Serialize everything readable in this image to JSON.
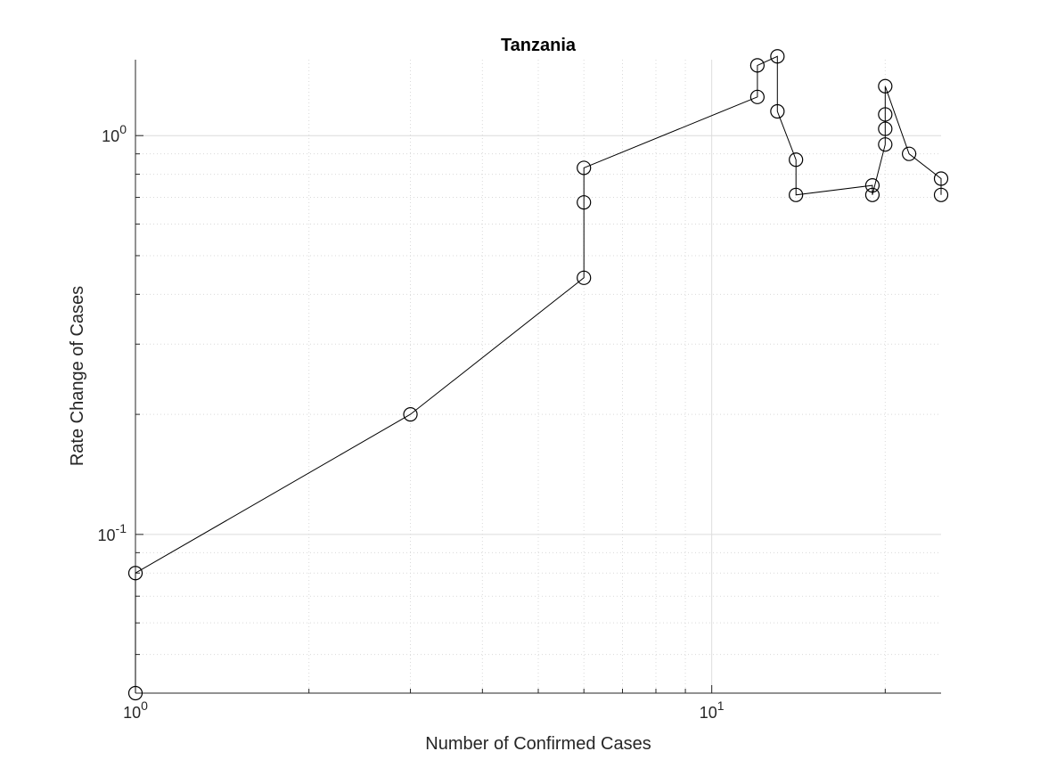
{
  "chart_data": {
    "type": "line",
    "title": "Tanzania",
    "xlabel": "Number of Confirmed Cases",
    "ylabel": "Rate Change of Cases",
    "xscale": "log",
    "yscale": "log",
    "xlim": [
      1,
      25
    ],
    "ylim": [
      0.04,
      1.55
    ],
    "grid": "on",
    "grid_minor": "on",
    "marker": "circle",
    "line_color": "#000000",
    "x_ticks": [
      {
        "value": 1,
        "base": "10",
        "exp": "0"
      },
      {
        "value": 10,
        "base": "10",
        "exp": "1"
      }
    ],
    "y_ticks": [
      {
        "value": 0.1,
        "base": "10",
        "exp": "-1"
      },
      {
        "value": 1,
        "base": "10",
        "exp": "0"
      }
    ],
    "series": [
      {
        "x": [
          1,
          1,
          3,
          6,
          6,
          6,
          12,
          12,
          13,
          13,
          14,
          14,
          19,
          19,
          20,
          20,
          20,
          20,
          22,
          25,
          25
        ],
        "y": [
          0.04,
          0.08,
          0.2,
          0.44,
          0.68,
          0.83,
          1.25,
          1.5,
          1.58,
          1.15,
          0.87,
          0.71,
          0.75,
          0.71,
          0.95,
          1.04,
          1.13,
          1.33,
          0.9,
          0.78,
          0.71
        ]
      }
    ]
  }
}
